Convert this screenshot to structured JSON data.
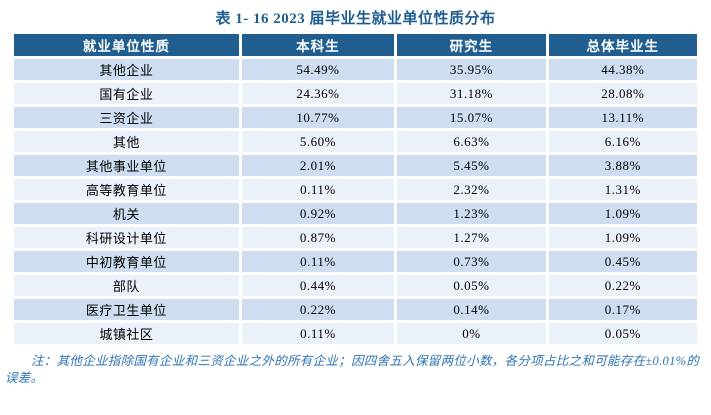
{
  "title": "表 1- 16  2023 届毕业生就业单位性质分布",
  "table": {
    "headers": [
      "就业单位性质",
      "本科生",
      "研究生",
      "总体毕业生"
    ],
    "rows": [
      [
        "其他企业",
        "54.49%",
        "35.95%",
        "44.38%"
      ],
      [
        "国有企业",
        "24.36%",
        "31.18%",
        "28.08%"
      ],
      [
        "三资企业",
        "10.77%",
        "15.07%",
        "13.11%"
      ],
      [
        "其他",
        "5.60%",
        "6.63%",
        "6.16%"
      ],
      [
        "其他事业单位",
        "2.01%",
        "5.45%",
        "3.88%"
      ],
      [
        "高等教育单位",
        "0.11%",
        "2.32%",
        "1.31%"
      ],
      [
        "机关",
        "0.92%",
        "1.23%",
        "1.09%"
      ],
      [
        "科研设计单位",
        "0.87%",
        "1.27%",
        "1.09%"
      ],
      [
        "中初教育单位",
        "0.11%",
        "0.73%",
        "0.45%"
      ],
      [
        "部队",
        "0.44%",
        "0.05%",
        "0.22%"
      ],
      [
        "医疗卫生单位",
        "0.22%",
        "0.14%",
        "0.17%"
      ],
      [
        "城镇社区",
        "0.11%",
        "0%",
        "0.05%"
      ]
    ]
  },
  "note": "注：其他企业指除国有企业和三资企业之外的所有企业；因四舍五入保留两位小数，各分项占比之和可能存在±0.01%的误差。",
  "colors": {
    "title": "#1F5C8F",
    "header_bg": "#205E90",
    "row_odd": "#CEDEF0",
    "row_even": "#EAF1F9",
    "note": "#2E74B5"
  }
}
